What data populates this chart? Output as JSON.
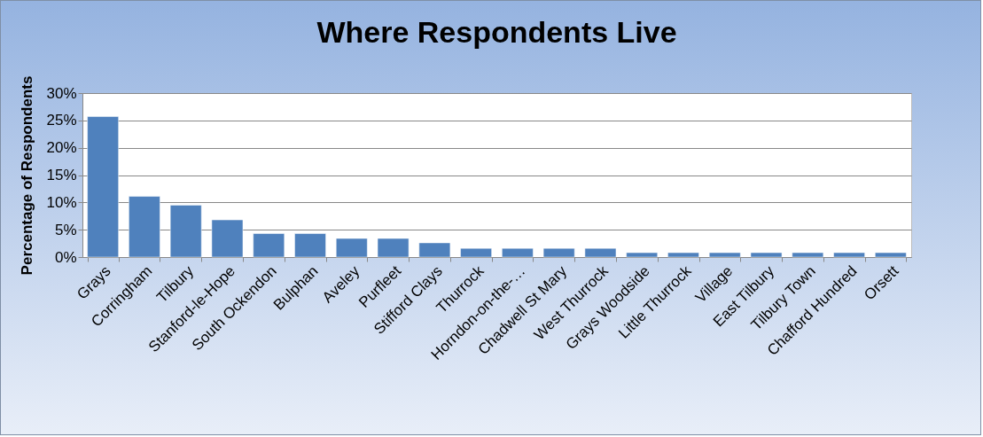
{
  "chart_data": {
    "type": "bar",
    "title": "Where Respondents Live",
    "ylabel": "Percentage of Respondents",
    "categories": [
      "Grays",
      "Corringham",
      "Tilbury",
      "Stanford-le-Hope",
      "South Ockendon",
      "Bulphan",
      "Aveley",
      "Purfleet",
      "Stifford Clays",
      "Thurrock",
      "Horndon-on-the-…",
      "Chadwell St Mary",
      "West Thurrock",
      "Grays Woodside",
      "Little Thurrock",
      "Village",
      "East Tilbury",
      "Tilbury Town",
      "Chafford Hundred",
      "Orsett"
    ],
    "values": [
      25.7,
      11.1,
      9.5,
      6.8,
      4.3,
      4.3,
      3.4,
      3.4,
      2.6,
      1.6,
      1.6,
      1.6,
      1.6,
      0.8,
      0.8,
      0.8,
      0.8,
      0.8,
      0.8,
      0.8
    ],
    "color": "#4f81bd",
    "ylim": [
      0,
      30
    ],
    "yticks": [
      {
        "value": 0,
        "label": "0%"
      },
      {
        "value": 5,
        "label": "5%"
      },
      {
        "value": 10,
        "label": "10%"
      },
      {
        "value": 15,
        "label": "15%"
      },
      {
        "value": 20,
        "label": "20%"
      },
      {
        "value": 25,
        "label": "25%"
      },
      {
        "value": 30,
        "label": "30%"
      }
    ],
    "grid": "y"
  }
}
